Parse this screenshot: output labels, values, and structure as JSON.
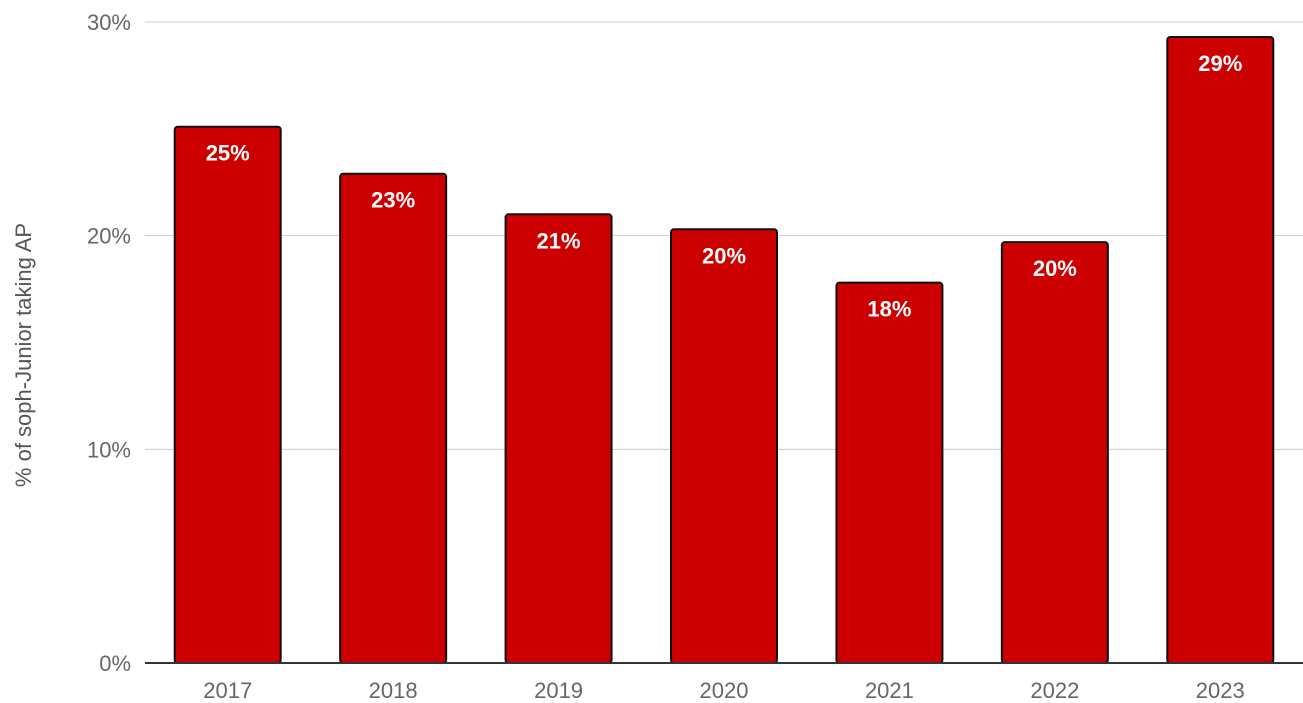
{
  "chart_data": {
    "type": "bar",
    "categories": [
      "2017",
      "2018",
      "2019",
      "2020",
      "2021",
      "2022",
      "2023"
    ],
    "values": [
      25.1,
      22.9,
      21.0,
      20.3,
      17.8,
      19.7,
      29.3
    ],
    "data_labels": [
      "25%",
      "23%",
      "21%",
      "20%",
      "18%",
      "20%",
      "29%"
    ],
    "ylabel": "% of soph-Junior taking AP",
    "ylim": [
      0,
      30
    ],
    "yticks": [
      0,
      10,
      20,
      30
    ],
    "ytick_labels": [
      "0%",
      "10%",
      "20%",
      "30%"
    ],
    "grid": true,
    "colors": {
      "bar": "#cc0000",
      "bar_border": "#111111",
      "label": "#ffffff"
    }
  }
}
